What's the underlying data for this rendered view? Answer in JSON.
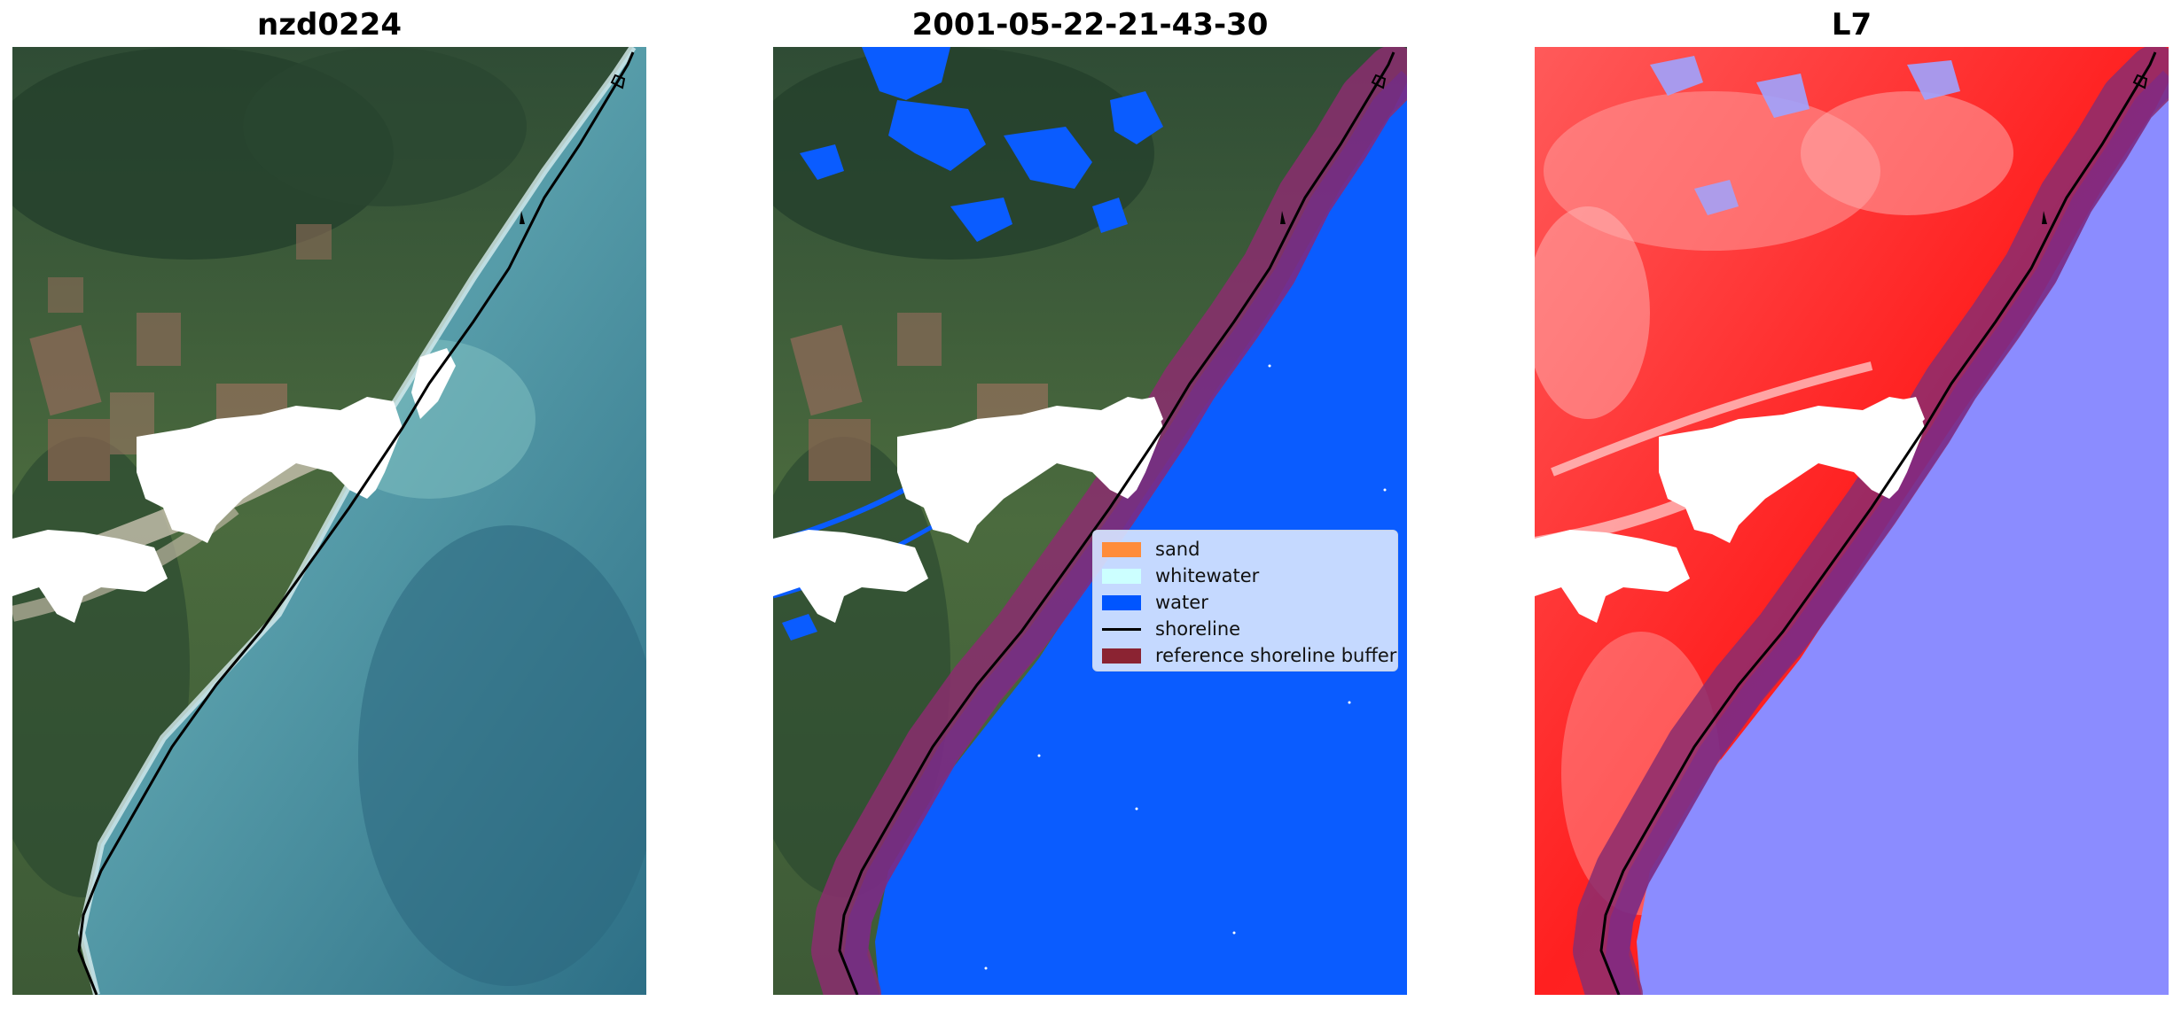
{
  "panels": [
    {
      "title": "nzd0224"
    },
    {
      "title": "2001-05-22-21-43-30"
    },
    {
      "title": "L7"
    }
  ],
  "legend": {
    "items": [
      {
        "label": "sand",
        "color": "#ff8c3a",
        "kind": "patch"
      },
      {
        "label": "whitewater",
        "color": "#ccffff",
        "kind": "patch"
      },
      {
        "label": "water",
        "color": "#0055ff",
        "kind": "patch"
      },
      {
        "label": "shoreline",
        "color": "#000000",
        "kind": "line"
      },
      {
        "label": "reference shoreline buffer",
        "color": "#8b2332",
        "kind": "patch"
      }
    ]
  },
  "colors": {
    "land_green": "#4a6b3a",
    "forest": "#2f4a33",
    "sea_turquoise": "#5a9ea9",
    "water_class": "#0a5cff",
    "buffer": "#8b2d6e",
    "index_red": "#ff2a2a",
    "index_blue": "#8b8cff"
  }
}
